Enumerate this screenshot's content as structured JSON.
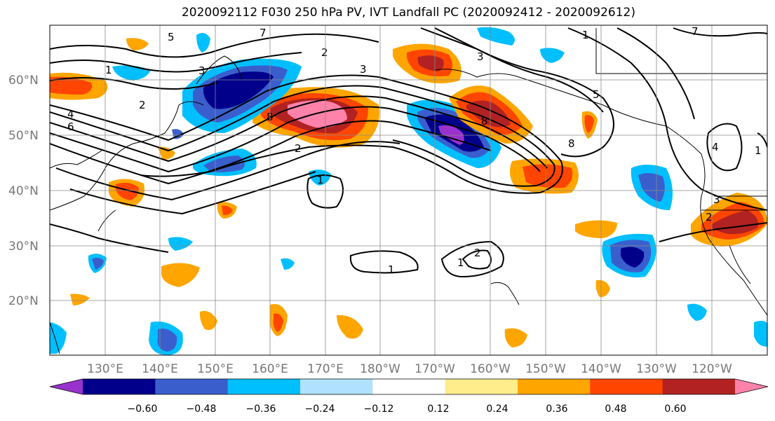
{
  "title": "2020092112 F030 250 hPa PV, IVT Landfall PC (2020092412 - 2020092612)",
  "map": {
    "lat_labels": [
      "60°N",
      "50°N",
      "40°N",
      "30°N",
      "20°N"
    ],
    "lon_labels": [
      "130°E",
      "140°E",
      "150°E",
      "160°E",
      "170°E",
      "180°W",
      "170°W",
      "160°W",
      "150°W",
      "140°W",
      "130°W",
      "120°W"
    ],
    "contour_levels_shown": [
      "1",
      "2",
      "3",
      "4",
      "5",
      "6",
      "7",
      "8"
    ],
    "contour_color": "#000000",
    "coastline_color": "#000000",
    "grid": true
  },
  "colorbar": {
    "ticks": [
      "−0.60",
      "−0.48",
      "−0.36",
      "−0.24",
      "−0.12",
      "0.12",
      "0.24",
      "0.36",
      "0.48",
      "0.60"
    ],
    "colors": [
      "#9932cc",
      "#00008b",
      "#3a5fcd",
      "#00bfff",
      "#b0e2ff",
      "#ffffff",
      "#ffec8b",
      "#ffa500",
      "#ff4500",
      "#b22222",
      "#ff82ab"
    ],
    "extend": "both"
  }
}
